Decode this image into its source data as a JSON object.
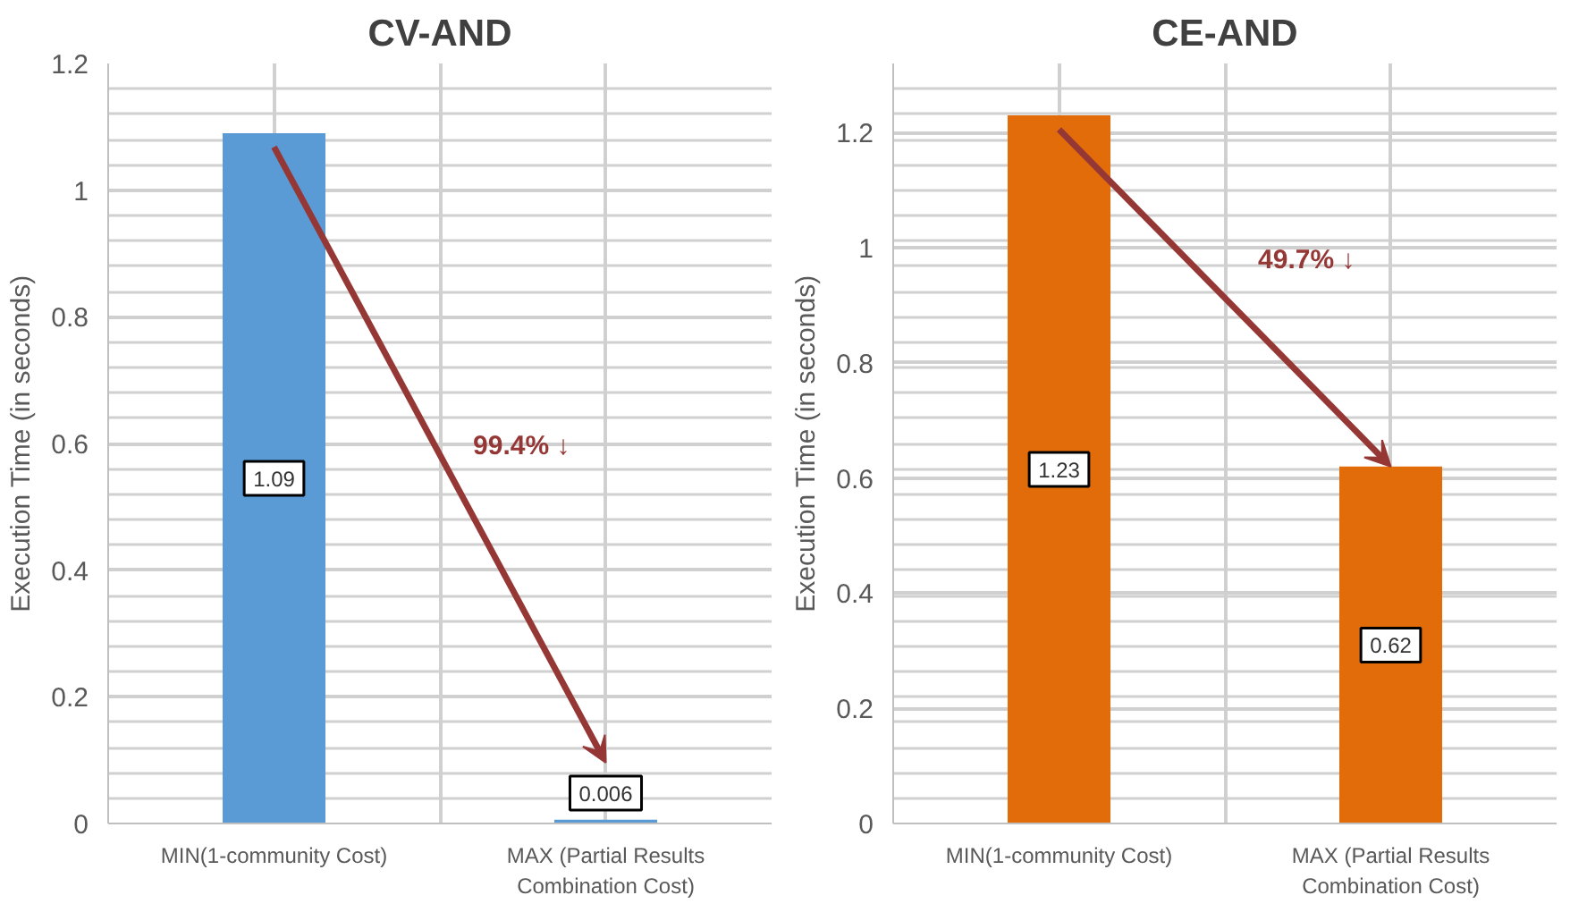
{
  "chart_data": [
    {
      "type": "bar",
      "title": "CV-AND",
      "ylabel": "Execution Time (in seconds)",
      "categories": [
        "MIN(1-community Cost)",
        "MAX (Partial Results Combination Cost)"
      ],
      "values": [
        1.09,
        0.006
      ],
      "color": "#5b9bd5",
      "ylim": [
        0,
        1.2
      ],
      "yticks": [
        0,
        0.2,
        0.4,
        0.6,
        0.8,
        1,
        1.2
      ],
      "grid": true,
      "data_labels": true,
      "annotations": [
        "99.4% ↓"
      ]
    },
    {
      "type": "bar",
      "title": "CE-AND",
      "ylabel": "Execution Time (in seconds)",
      "categories": [
        "MIN(1-community Cost)",
        "MAX (Partial Results Combination Cost)"
      ],
      "values": [
        1.23,
        0.62
      ],
      "color": "#e36c0a",
      "ylim": [
        0,
        1.32
      ],
      "yticks": [
        0,
        0.2,
        0.4,
        0.6,
        0.8,
        1,
        1.2
      ],
      "grid": true,
      "data_labels": true,
      "annotations": [
        "49.7% ↓"
      ]
    }
  ]
}
